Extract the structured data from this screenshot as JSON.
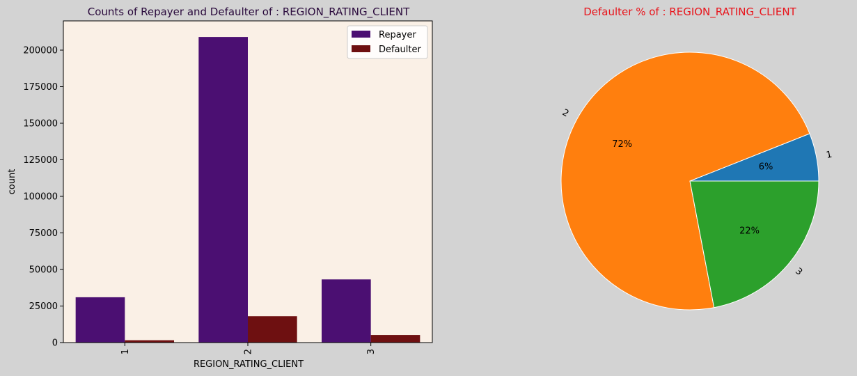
{
  "figure": {
    "background": "#d3d3d3"
  },
  "chart_data": [
    {
      "type": "bar",
      "title": "Counts of Repayer and Defaulter of : REGION_RATING_CLIENT",
      "title_color": "#2a0a3c",
      "plot_background": "#faf0e6",
      "xlabel": "REGION_RATING_CLIENT",
      "ylabel": "count",
      "categories": [
        "1",
        "2",
        "3"
      ],
      "ylim": [
        0,
        220000
      ],
      "yticks": [
        0,
        25000,
        50000,
        75000,
        100000,
        125000,
        150000,
        175000,
        200000
      ],
      "legend_position": "top-right",
      "series": [
        {
          "name": "Repayer",
          "color": "#4b0f72",
          "values": [
            31000,
            209000,
            43200
          ]
        },
        {
          "name": "Defaulter",
          "color": "#6e1011",
          "values": [
            1600,
            18000,
            5200
          ]
        }
      ]
    },
    {
      "type": "pie",
      "title": "Defaulter % of : REGION_RATING_CLIENT",
      "title_color": "#e8141b",
      "labels": [
        "1",
        "2",
        "3"
      ],
      "values": [
        6,
        72,
        22
      ],
      "value_labels": [
        "6%",
        "72%",
        "22%"
      ],
      "colors": [
        "#1f77b4",
        "#ff7f0e",
        "#2ca02c"
      ],
      "edge_color": "#ffffff"
    }
  ]
}
